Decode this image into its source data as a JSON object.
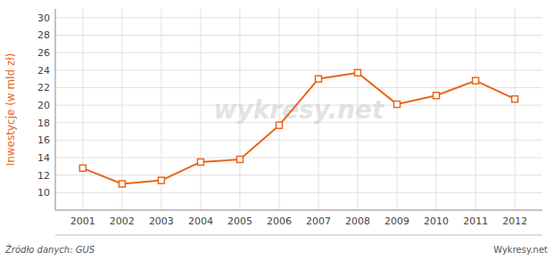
{
  "chart_data": {
    "type": "line",
    "ylabel": "Inwestycje (w mld zł)",
    "x": [
      2001,
      2002,
      2003,
      2004,
      2005,
      2006,
      2007,
      2008,
      2009,
      2010,
      2011,
      2012
    ],
    "values": [
      12.8,
      11.0,
      11.4,
      13.5,
      13.8,
      17.7,
      23.0,
      23.7,
      20.1,
      21.1,
      22.8,
      20.7
    ],
    "color": "#e8651a",
    "marker": "square",
    "xlim": [
      2000.3,
      2012.7
    ],
    "xticks": [
      2001,
      2002,
      2003,
      2004,
      2005,
      2006,
      2007,
      2008,
      2009,
      2010,
      2011,
      2012
    ],
    "ylim": [
      8,
      31
    ],
    "yticks": [
      10,
      12,
      14,
      16,
      18,
      20,
      22,
      24,
      26,
      28,
      30
    ],
    "grid": true,
    "annotations": [
      "Źródło danych:  GUS",
      "Wykresy.net",
      "wykresy.net"
    ]
  }
}
